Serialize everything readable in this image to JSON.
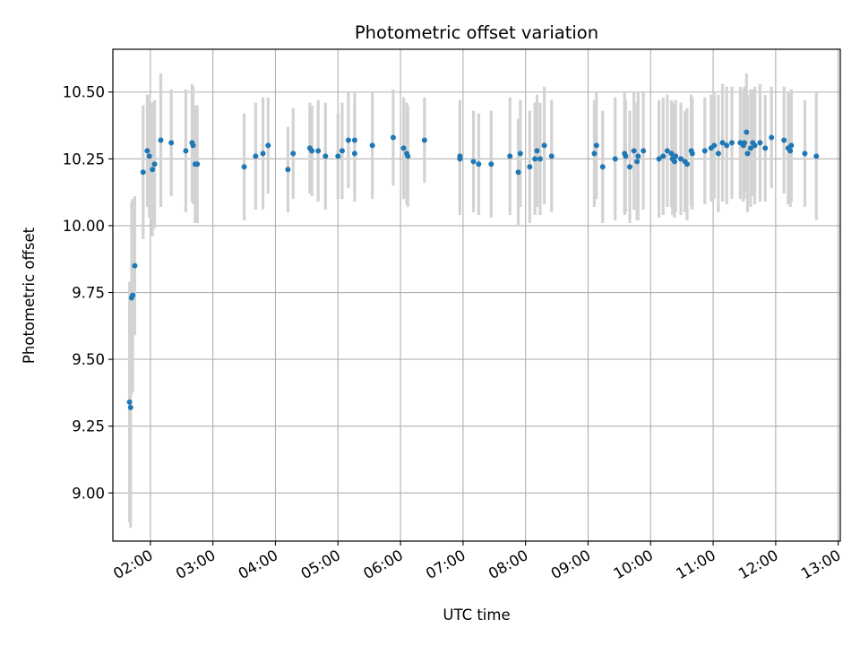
{
  "chart_data": {
    "type": "scatter",
    "title": "Photometric offset variation",
    "xlabel": "UTC time",
    "ylabel": "Photometric offset",
    "x_type": "time",
    "xlim": [
      "01:24",
      "13:02"
    ],
    "ylim": [
      8.82,
      10.66
    ],
    "xticks": [
      "02:00",
      "03:00",
      "04:00",
      "05:00",
      "06:00",
      "07:00",
      "08:00",
      "09:00",
      "10:00",
      "11:00",
      "12:00",
      "13:00"
    ],
    "yticks": [
      9.0,
      9.25,
      9.5,
      9.75,
      10.0,
      10.25,
      10.5
    ],
    "ytick_labels": [
      "9.00",
      "9.25",
      "9.50",
      "9.75",
      "10.00",
      "10.25",
      "10.50"
    ],
    "grid": true,
    "colors": {
      "points": "#1f77b4",
      "errorbars": "#d3d3d3",
      "grid": "#b0b0b0"
    },
    "series": [
      {
        "points": [
          [
            "01:40",
            9.34,
            0.45
          ],
          [
            "01:41",
            9.32,
            0.45
          ],
          [
            "01:42",
            9.73,
            0.36
          ],
          [
            "01:43",
            9.74,
            0.36
          ],
          [
            "01:45",
            9.85,
            0.26
          ],
          [
            "01:53",
            10.2,
            0.25
          ],
          [
            "01:57",
            10.28,
            0.21
          ],
          [
            "01:59",
            10.26,
            0.23
          ],
          [
            "02:02",
            10.21,
            0.25
          ],
          [
            "02:04",
            10.23,
            0.24
          ],
          [
            "02:10",
            10.32,
            0.25
          ],
          [
            "02:20",
            10.31,
            0.2
          ],
          [
            "02:34",
            10.28,
            0.23
          ],
          [
            "02:40",
            10.31,
            0.22
          ],
          [
            "02:41",
            10.3,
            0.22
          ],
          [
            "02:43",
            10.23,
            0.22
          ],
          [
            "02:45",
            10.23,
            0.22
          ],
          [
            "03:30",
            10.22,
            0.2
          ],
          [
            "03:41",
            10.26,
            0.2
          ],
          [
            "03:48",
            10.27,
            0.21
          ],
          [
            "03:53",
            10.3,
            0.18
          ],
          [
            "04:12",
            10.21,
            0.16
          ],
          [
            "04:17",
            10.27,
            0.17
          ],
          [
            "04:33",
            10.29,
            0.17
          ],
          [
            "04:35",
            10.28,
            0.17
          ],
          [
            "04:41",
            10.28,
            0.19
          ],
          [
            "04:48",
            10.26,
            0.2
          ],
          [
            "05:00",
            10.26,
            0.16
          ],
          [
            "05:04",
            10.28,
            0.18
          ],
          [
            "05:10",
            10.32,
            0.18
          ],
          [
            "05:16",
            10.32,
            0.18
          ],
          [
            "05:16",
            10.27,
            0.18
          ],
          [
            "05:33",
            10.3,
            0.2
          ],
          [
            "05:53",
            10.33,
            0.18
          ],
          [
            "06:03",
            10.29,
            0.19
          ],
          [
            "06:06",
            10.27,
            0.19
          ],
          [
            "06:07",
            10.26,
            0.19
          ],
          [
            "06:23",
            10.32,
            0.16
          ],
          [
            "06:57",
            10.26,
            0.21
          ],
          [
            "06:57",
            10.25,
            0.21
          ],
          [
            "07:10",
            10.24,
            0.19
          ],
          [
            "07:15",
            10.23,
            0.19
          ],
          [
            "07:27",
            10.23,
            0.2
          ],
          [
            "07:45",
            10.26,
            0.22
          ],
          [
            "07:53",
            10.2,
            0.2
          ],
          [
            "07:55",
            10.27,
            0.2
          ],
          [
            "08:04",
            10.22,
            0.21
          ],
          [
            "08:09",
            10.25,
            0.21
          ],
          [
            "08:11",
            10.28,
            0.21
          ],
          [
            "08:14",
            10.25,
            0.21
          ],
          [
            "08:18",
            10.3,
            0.22
          ],
          [
            "08:25",
            10.26,
            0.21
          ],
          [
            "09:06",
            10.27,
            0.2
          ],
          [
            "09:08",
            10.3,
            0.2
          ],
          [
            "09:14",
            10.22,
            0.21
          ],
          [
            "09:26",
            10.25,
            0.23
          ],
          [
            "09:35",
            10.27,
            0.23
          ],
          [
            "09:36",
            10.26,
            0.21
          ],
          [
            "09:40",
            10.22,
            0.21
          ],
          [
            "09:44",
            10.28,
            0.22
          ],
          [
            "09:47",
            10.24,
            0.22
          ],
          [
            "09:48",
            10.26,
            0.24
          ],
          [
            "09:53",
            10.28,
            0.22
          ],
          [
            "10:08",
            10.25,
            0.22
          ],
          [
            "10:12",
            10.26,
            0.22
          ],
          [
            "10:16",
            10.28,
            0.21
          ],
          [
            "10:20",
            10.27,
            0.2
          ],
          [
            "10:21",
            10.25,
            0.21
          ],
          [
            "10:23",
            10.24,
            0.21
          ],
          [
            "10:24",
            10.26,
            0.21
          ],
          [
            "10:29",
            10.25,
            0.21
          ],
          [
            "10:33",
            10.24,
            0.19
          ],
          [
            "10:35",
            10.23,
            0.21
          ],
          [
            "10:39",
            10.28,
            0.21
          ],
          [
            "10:40",
            10.27,
            0.21
          ],
          [
            "10:52",
            10.28,
            0.2
          ],
          [
            "10:58",
            10.29,
            0.2
          ],
          [
            "11:01",
            10.3,
            0.2
          ],
          [
            "11:05",
            10.27,
            0.22
          ],
          [
            "11:09",
            10.31,
            0.22
          ],
          [
            "11:13",
            10.3,
            0.22
          ],
          [
            "11:18",
            10.31,
            0.21
          ],
          [
            "11:26",
            10.31,
            0.21
          ],
          [
            "11:29",
            10.3,
            0.21
          ],
          [
            "11:30",
            10.31,
            0.21
          ],
          [
            "11:32",
            10.35,
            0.22
          ],
          [
            "11:33",
            10.27,
            0.22
          ],
          [
            "11:36",
            10.29,
            0.22
          ],
          [
            "11:38",
            10.31,
            0.2
          ],
          [
            "11:40",
            10.3,
            0.22
          ],
          [
            "11:45",
            10.31,
            0.22
          ],
          [
            "11:50",
            10.29,
            0.2
          ],
          [
            "11:56",
            10.33,
            0.19
          ],
          [
            "12:08",
            10.32,
            0.2
          ],
          [
            "12:12",
            10.29,
            0.21
          ],
          [
            "12:14",
            10.28,
            0.21
          ],
          [
            "12:15",
            10.3,
            0.21
          ],
          [
            "12:28",
            10.27,
            0.2
          ],
          [
            "12:39",
            10.26,
            0.24
          ]
        ]
      }
    ]
  }
}
